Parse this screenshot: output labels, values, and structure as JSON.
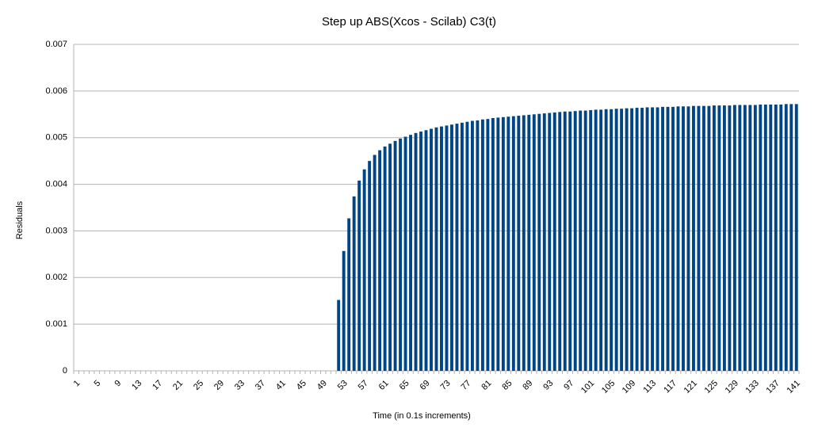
{
  "chart_data": {
    "type": "bar",
    "title": "Step up ABS(Xcos - Scilab) C3(t)",
    "x_label": "Time (in 0.1s increments)",
    "y_label": "Residuals",
    "color": "#004586",
    "categories": [
      "1",
      null,
      null,
      null,
      "5",
      null,
      null,
      null,
      "9",
      null,
      null,
      null,
      "13",
      null,
      null,
      null,
      "17",
      null,
      null,
      null,
      "21",
      null,
      null,
      null,
      "25",
      null,
      null,
      null,
      "29",
      null,
      null,
      null,
      "33",
      null,
      null,
      null,
      "37",
      null,
      null,
      null,
      "41",
      null,
      null,
      null,
      "45",
      null,
      null,
      null,
      "49",
      null,
      null,
      null,
      "53",
      null,
      null,
      null,
      "57",
      null,
      null,
      null,
      "61",
      null,
      null,
      null,
      "65",
      null,
      null,
      null,
      "69",
      null,
      null,
      null,
      "73",
      null,
      null,
      null,
      "77",
      null,
      null,
      null,
      "81",
      null,
      null,
      null,
      "85",
      null,
      null,
      null,
      "89",
      null,
      null,
      null,
      "93",
      null,
      null,
      null,
      "97",
      null,
      null,
      null,
      "101",
      null,
      null,
      null,
      "105",
      null,
      null,
      null,
      "109",
      null,
      null,
      null,
      "113",
      null,
      null,
      null,
      "117",
      null,
      null,
      null,
      "121",
      null,
      null,
      null,
      "125",
      null,
      null,
      null,
      "129",
      null,
      null,
      null,
      "133",
      null,
      null,
      null,
      "137",
      null,
      null,
      null,
      "141"
    ],
    "values": [
      0,
      0,
      0,
      0,
      0,
      0,
      0,
      0,
      0,
      0,
      0,
      0,
      0,
      0,
      0,
      0,
      0,
      0,
      0,
      0,
      0,
      0,
      0,
      0,
      0,
      0,
      0,
      0,
      0,
      0,
      0,
      0,
      0,
      0,
      0,
      0,
      0,
      0,
      0,
      0,
      0,
      0,
      0,
      0,
      0,
      0,
      0,
      0,
      0,
      0,
      0,
      0.00152,
      0.00257,
      0.00327,
      0.00374,
      0.00408,
      0.00432,
      0.0045,
      0.00463,
      0.00473,
      0.00481,
      0.00487,
      0.00493,
      0.00498,
      0.00502,
      0.00506,
      0.0051,
      0.00513,
      0.00516,
      0.00519,
      0.00522,
      0.00524,
      0.00526,
      0.00528,
      0.0053,
      0.00532,
      0.00534,
      0.00536,
      0.00537,
      0.00539,
      0.0054,
      0.00542,
      0.00543,
      0.00544,
      0.00545,
      0.00546,
      0.00547,
      0.00548,
      0.00549,
      0.0055,
      0.00551,
      0.00552,
      0.00553,
      0.00554,
      0.00555,
      0.00556,
      0.00556,
      0.00557,
      0.00558,
      0.00558,
      0.00559,
      0.0056,
      0.0056,
      0.00561,
      0.00561,
      0.00562,
      0.00562,
      0.00563,
      0.00563,
      0.00564,
      0.00564,
      0.00565,
      0.00565,
      0.00565,
      0.00566,
      0.00566,
      0.00566,
      0.00567,
      0.00567,
      0.00567,
      0.00568,
      0.00568,
      0.00568,
      0.00568,
      0.00569,
      0.00569,
      0.00569,
      0.00569,
      0.0057,
      0.0057,
      0.0057,
      0.0057,
      0.0057,
      0.00571,
      0.00571,
      0.00571,
      0.00571,
      0.00571,
      0.00572,
      0.00572,
      0.00572
    ],
    "ylim": [
      0,
      0.007
    ],
    "yticks": [
      0,
      0.001,
      0.002,
      0.003,
      0.004,
      0.005,
      0.006,
      0.007
    ],
    "grid": true
  }
}
